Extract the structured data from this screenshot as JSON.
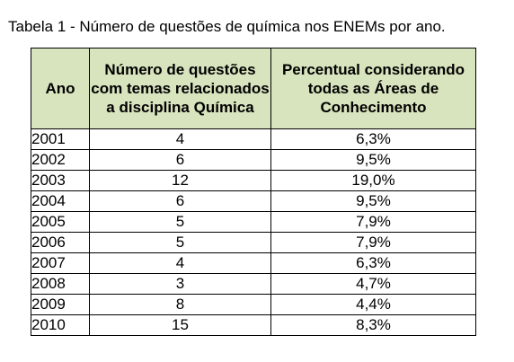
{
  "caption": "Tabela 1 - Número de questões de química nos ENEMs por ano.",
  "header_bg": "#d7e4bd",
  "table": {
    "headers": [
      "Ano",
      "Número de questões com temas relacionados a disciplina Química",
      "Percentual considerando todas as Áreas de Conhecimento"
    ],
    "rows": [
      {
        "year": "2001",
        "count": "4",
        "percent": "6,3%"
      },
      {
        "year": "2002",
        "count": "6",
        "percent": "9,5%"
      },
      {
        "year": "2003",
        "count": "12",
        "percent": "19,0%"
      },
      {
        "year": "2004",
        "count": "6",
        "percent": "9,5%"
      },
      {
        "year": "2005",
        "count": "5",
        "percent": "7,9%"
      },
      {
        "year": "2006",
        "count": "5",
        "percent": "7,9%"
      },
      {
        "year": "2007",
        "count": "4",
        "percent": "6,3%"
      },
      {
        "year": "2008",
        "count": "3",
        "percent": "4,7%"
      },
      {
        "year": "2009",
        "count": "8",
        "percent": "4,4%"
      },
      {
        "year": "2010",
        "count": "15",
        "percent": "8,3%"
      }
    ]
  }
}
